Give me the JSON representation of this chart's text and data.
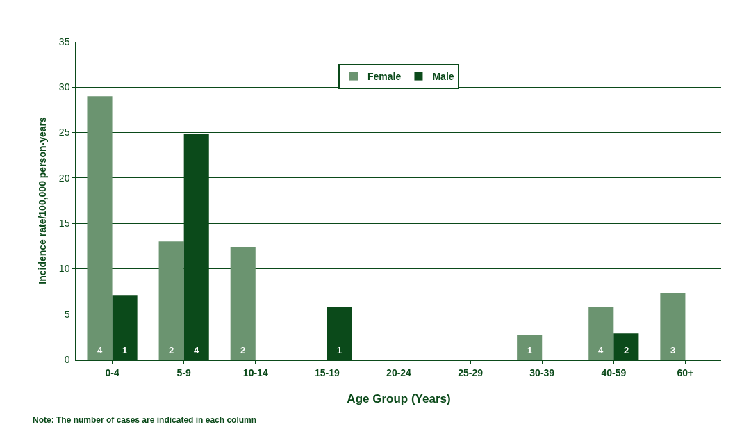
{
  "chart_data": {
    "type": "bar",
    "xlabel": "Age Group (Years)",
    "ylabel": "Incidence rate/100,000 person-years",
    "categories": [
      "0-4",
      "5-9",
      "10-14",
      "15-19",
      "20-24",
      "25-29",
      "30-39",
      "40-59",
      "60+"
    ],
    "series": [
      {
        "name": "Female",
        "color": "#6b9470",
        "values": [
          29.0,
          13.0,
          12.4,
          null,
          null,
          null,
          2.7,
          5.8,
          7.3
        ]
      },
      {
        "name": "Male",
        "color": "#0b4a1a",
        "values": [
          7.1,
          24.9,
          null,
          5.8,
          null,
          null,
          null,
          2.9,
          null
        ]
      }
    ],
    "ylim": [
      0,
      35
    ],
    "yticks": [
      0,
      5,
      10,
      15,
      20,
      25,
      30,
      35
    ],
    "grid": "y",
    "legend": "top",
    "annotations": [
      {
        "text": "4",
        "x": "0-4",
        "y": 0
      },
      {
        "text": "1",
        "x": "0-4",
        "y": 0
      },
      {
        "text": "2",
        "x": "5-9",
        "y": 0
      },
      {
        "text": "4",
        "x": "5-9",
        "y": 0
      },
      {
        "text": "2",
        "x": "10-14",
        "y": 0
      },
      {
        "text": "1",
        "x": "15-19",
        "y": 0
      },
      {
        "text": "1",
        "x": "30-39",
        "y": 0
      },
      {
        "text": "4",
        "x": "40-59",
        "y": 0
      },
      {
        "text": "2",
        "x": "40-59",
        "y": 0
      },
      {
        "text": "3",
        "x": "60+",
        "y": 0
      },
      "Note: The number of cases are indicated in each column"
    ]
  }
}
